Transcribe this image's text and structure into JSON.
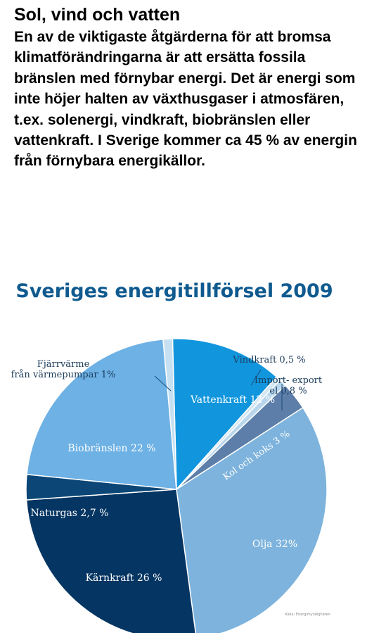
{
  "article": {
    "heading": "Sol, vind och vatten",
    "body": "En av de viktigaste åtgärderna för att bromsa klimatförändringarna är att ersätta fossila bränslen med förnybar energi. Det är energi som inte höjer halten av växthusgaser i atmosfären, t.ex. solenergi, vindkraft, biobränslen eller vattenkraft. I Sverige kommer ca 45 % av energin från förnybara energikällor."
  },
  "chart_data": {
    "type": "pie",
    "title": "Sveriges energitillförsel 2009",
    "source": "Källa: Energimyndigheten",
    "unit": "%",
    "slices": [
      {
        "label": "Vattenkraft 12 %",
        "value": 12,
        "color": "#1196dd",
        "text_color": "#ffffff"
      },
      {
        "label": "Vindkraft 0,5 %",
        "value": 0.5,
        "color": "#d2e6f3",
        "text_color": "#1a3b5a"
      },
      {
        "label": "Import- export el 0,8 %",
        "value": 0.8,
        "color": "#b9d7ec",
        "text_color": "#1a3b5a"
      },
      {
        "label": "Kol och koks 3 %",
        "value": 3,
        "color": "#5c7ea8",
        "text_color": "#ffffff"
      },
      {
        "label": "Olja 32%",
        "value": 32,
        "color": "#7db3dc",
        "text_color": "#ffffff"
      },
      {
        "label": "Kärnkraft 26 %",
        "value": 26,
        "color": "#053562",
        "text_color": "#ffffff"
      },
      {
        "label": "Naturgas 2,7 %",
        "value": 2.7,
        "color": "#0b4677",
        "text_color": "#ffffff"
      },
      {
        "label": "Biobränslen 22 %",
        "value": 22,
        "color": "#6db1e5",
        "text_color": "#ffffff"
      },
      {
        "label": "Fjärrvärme från värmepumpar 1%",
        "value": 1,
        "color": "#c6e0f2",
        "text_color": "#1a3b5a"
      }
    ],
    "colors": {
      "title": "#0f5a8f",
      "outline": "#ffffff",
      "leader_line": "#1a4d7c"
    }
  }
}
